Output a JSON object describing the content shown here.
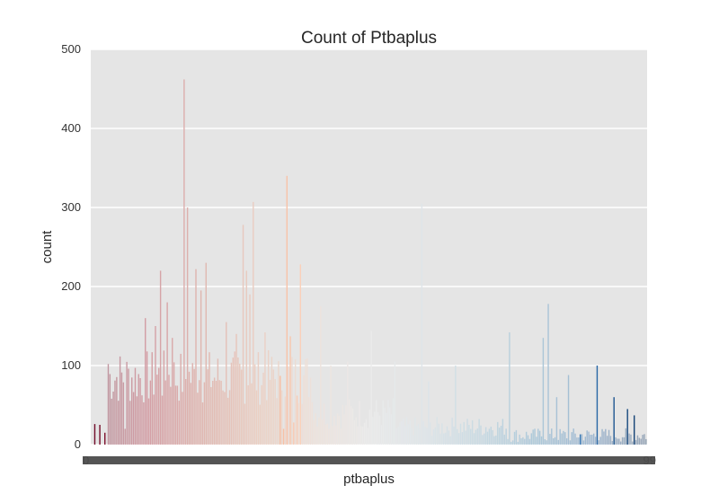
{
  "chart_data": {
    "type": "bar",
    "title": "Count of Ptbaplus",
    "xlabel": "ptbaplus",
    "ylabel": "count",
    "ylim": [
      0,
      500
    ],
    "yticks": [
      0,
      100,
      200,
      300,
      400,
      500
    ],
    "grid": true,
    "legend": "none",
    "x_first_tick": "0",
    "x_last_tick": "99",
    "palette": [
      "#67001f",
      "#b2182b",
      "#d6604d",
      "#f4a582",
      "#fddbc7",
      "#f7f7f7",
      "#d1e5f0",
      "#92c5de",
      "#4393c3",
      "#2166ac",
      "#053061"
    ],
    "highlights": [
      {
        "index": 2,
        "value": 26
      },
      {
        "index": 5,
        "value": 25
      },
      {
        "index": 8,
        "value": 15
      },
      {
        "index": 10,
        "value": 102
      },
      {
        "index": 20,
        "value": 20
      },
      {
        "index": 32,
        "value": 160
      },
      {
        "index": 38,
        "value": 150
      },
      {
        "index": 41,
        "value": 220
      },
      {
        "index": 45,
        "value": 180
      },
      {
        "index": 48,
        "value": 135
      },
      {
        "index": 55,
        "value": 462
      },
      {
        "index": 57,
        "value": 300
      },
      {
        "index": 62,
        "value": 222
      },
      {
        "index": 65,
        "value": 195
      },
      {
        "index": 68,
        "value": 230
      },
      {
        "index": 80,
        "value": 155
      },
      {
        "index": 86,
        "value": 140
      },
      {
        "index": 90,
        "value": 278
      },
      {
        "index": 92,
        "value": 220
      },
      {
        "index": 94,
        "value": 190
      },
      {
        "index": 96,
        "value": 307
      },
      {
        "index": 103,
        "value": 142
      },
      {
        "index": 108,
        "value": 95
      },
      {
        "index": 112,
        "value": 87
      },
      {
        "index": 114,
        "value": 20
      },
      {
        "index": 116,
        "value": 340
      },
      {
        "index": 118,
        "value": 137
      },
      {
        "index": 120,
        "value": 28
      },
      {
        "index": 122,
        "value": 62
      },
      {
        "index": 124,
        "value": 228
      },
      {
        "index": 136,
        "value": 175
      },
      {
        "index": 142,
        "value": 100
      },
      {
        "index": 152,
        "value": 105
      },
      {
        "index": 166,
        "value": 144
      },
      {
        "index": 180,
        "value": 105
      },
      {
        "index": 196,
        "value": 305
      },
      {
        "index": 200,
        "value": 80
      },
      {
        "index": 216,
        "value": 100
      },
      {
        "index": 248,
        "value": 142
      },
      {
        "index": 268,
        "value": 135
      },
      {
        "index": 271,
        "value": 178
      },
      {
        "index": 276,
        "value": 60
      },
      {
        "index": 283,
        "value": 88
      },
      {
        "index": 300,
        "value": 100
      },
      {
        "index": 310,
        "value": 60
      },
      {
        "index": 318,
        "value": 45
      },
      {
        "index": 322,
        "value": 37
      }
    ]
  }
}
